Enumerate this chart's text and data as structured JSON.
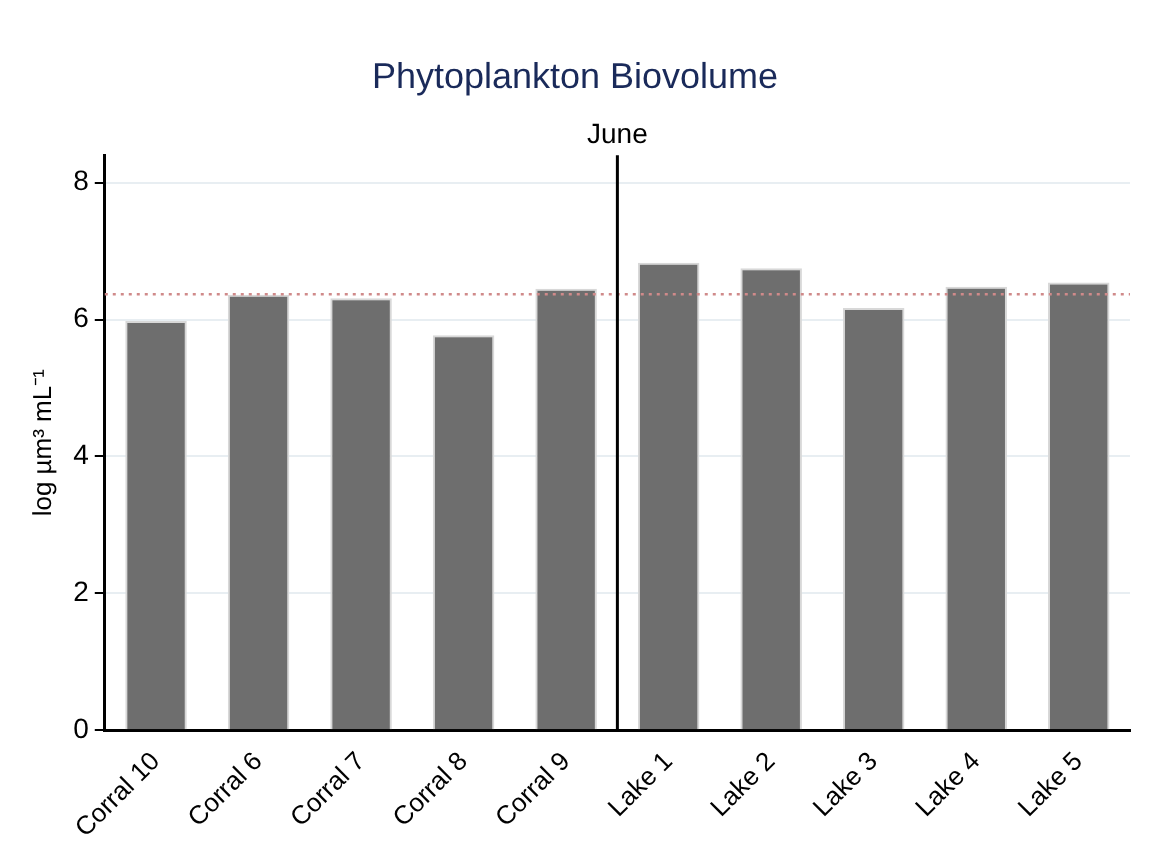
{
  "chart_data": {
    "type": "bar",
    "title": "Phytoplankton Biovolume",
    "ylabel": "log µm³ mL⁻¹",
    "categories": [
      "Corral 10",
      "Corral 6",
      "Corral 7",
      "Corral 8",
      "Corral 9",
      "Lake 1",
      "Lake 2",
      "Lake 3",
      "Lake 4",
      "Lake 5"
    ],
    "values": [
      5.98,
      6.36,
      6.31,
      5.77,
      6.45,
      6.83,
      6.75,
      6.17,
      6.48,
      6.54
    ],
    "color": "#6e6e6e",
    "ylim": [
      0,
      8.4
    ],
    "yticks": [
      0,
      2,
      4,
      6,
      8
    ],
    "grid": "y",
    "legend": false,
    "ref_lines": [
      {
        "axis": "y",
        "value": 6.37,
        "color": "#d08a8a",
        "line_style": "dotted"
      },
      {
        "axis": "x",
        "value": "Lake 1",
        "label": "June",
        "color": "#000000",
        "line_style": "solid"
      }
    ]
  }
}
